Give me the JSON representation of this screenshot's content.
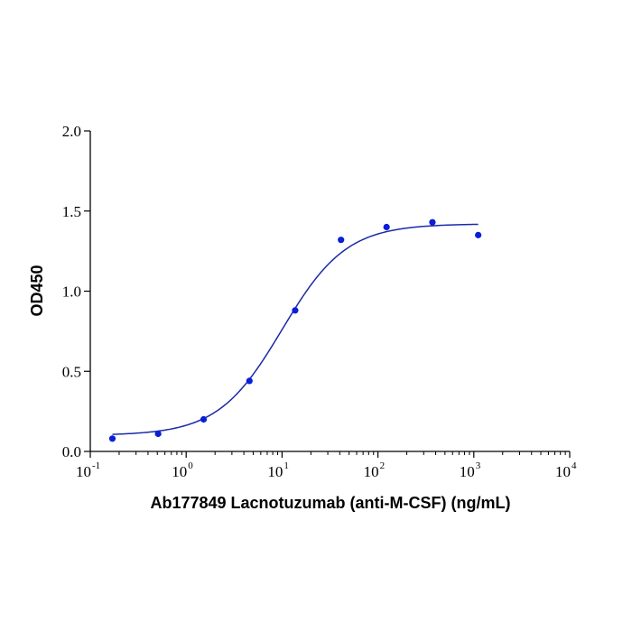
{
  "chart_data": {
    "type": "scatter",
    "xlabel": "Ab177849 Lacnotuzumab (anti-M-CSF) (ng/mL)",
    "ylabel": "OD450",
    "x_scale": "log10",
    "xlim": [
      0.1,
      10000
    ],
    "ylim": [
      0,
      2.0
    ],
    "x_ticks": [
      {
        "base": "10",
        "exp": "-1",
        "value": 0.1
      },
      {
        "base": "10",
        "exp": "0",
        "value": 1
      },
      {
        "base": "10",
        "exp": "1",
        "value": 10
      },
      {
        "base": "10",
        "exp": "2",
        "value": 100
      },
      {
        "base": "10",
        "exp": "3",
        "value": 1000
      },
      {
        "base": "10",
        "exp": "4",
        "value": 10000
      }
    ],
    "y_ticks": [
      {
        "label": "0.0",
        "value": 0.0
      },
      {
        "label": "0.5",
        "value": 0.5
      },
      {
        "label": "1.0",
        "value": 1.0
      },
      {
        "label": "1.5",
        "value": 1.5
      },
      {
        "label": "2.0",
        "value": 2.0
      }
    ],
    "grid": false,
    "points": [
      {
        "x": 0.17,
        "y": 0.08
      },
      {
        "x": 0.51,
        "y": 0.11
      },
      {
        "x": 1.52,
        "y": 0.2
      },
      {
        "x": 4.57,
        "y": 0.44
      },
      {
        "x": 13.7,
        "y": 0.88
      },
      {
        "x": 41.2,
        "y": 1.32
      },
      {
        "x": 123,
        "y": 1.4
      },
      {
        "x": 370,
        "y": 1.43
      },
      {
        "x": 1111,
        "y": 1.35
      }
    ],
    "fit_curve": {
      "model": "4PL",
      "bottom": 0.1,
      "top": 1.42,
      "ec50": 10.0,
      "hill": 1.3,
      "x_range": [
        0.17,
        1111
      ]
    },
    "colors": {
      "points": "#0a1fd6",
      "curve": "#1a2aa8",
      "axes": "#000000"
    }
  }
}
